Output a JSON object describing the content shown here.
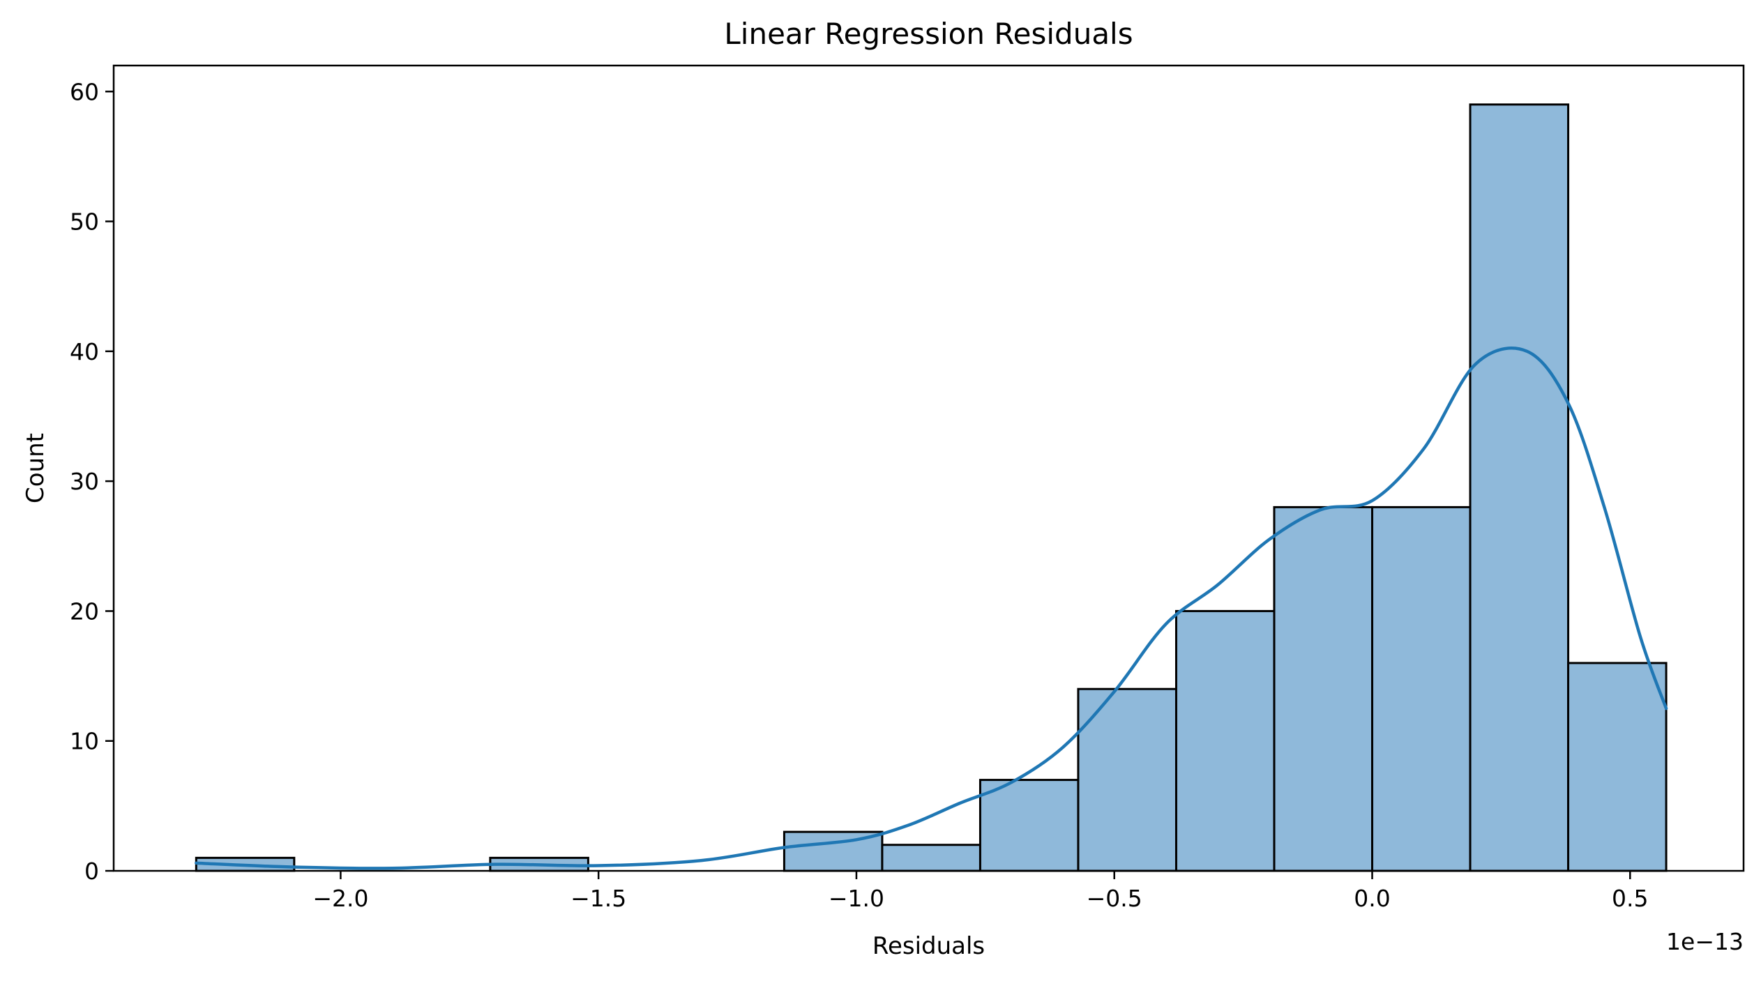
{
  "chart_data": {
    "type": "bar",
    "subtype": "histogram-with-kde",
    "title": "Linear Regression Residuals",
    "xlabel": "Residuals",
    "ylabel": "Count",
    "x_offset_label": "1e−13",
    "x_scale_note": "x values are in units of 1e-13",
    "xlim": [
      -2.44,
      0.72
    ],
    "ylim": [
      0,
      62
    ],
    "grid": false,
    "legend": false,
    "colors": {
      "bar_fill": "#8fb9da",
      "bar_edge": "#000000",
      "kde_line": "#1f77b4"
    },
    "bins": {
      "start": -2.28,
      "width": 0.19
    },
    "values": [
      1,
      0,
      0,
      1,
      0,
      0,
      3,
      2,
      7,
      14,
      20,
      28,
      28,
      59,
      16
    ],
    "x_ticks": [
      -2.0,
      -1.5,
      -1.0,
      -0.5,
      0.0,
      0.5
    ],
    "x_tick_labels": [
      "−2.0",
      "−1.5",
      "−1.0",
      "−0.5",
      "0.0",
      "0.5"
    ],
    "y_ticks": [
      0,
      10,
      20,
      30,
      40,
      50,
      60
    ],
    "y_tick_labels": [
      "0",
      "10",
      "20",
      "30",
      "40",
      "50",
      "60"
    ],
    "kde": {
      "x": [
        -2.28,
        -2.1,
        -1.9,
        -1.7,
        -1.5,
        -1.3,
        -1.14,
        -1.0,
        -0.9,
        -0.8,
        -0.7,
        -0.6,
        -0.5,
        -0.4,
        -0.3,
        -0.2,
        -0.1,
        0.0,
        0.1,
        0.2,
        0.3,
        0.38,
        0.45,
        0.52,
        0.57
      ],
      "y": [
        0.6,
        0.3,
        0.2,
        0.5,
        0.4,
        0.8,
        1.8,
        2.4,
        3.5,
        5.2,
        6.8,
        9.5,
        13.8,
        19.0,
        22.0,
        25.5,
        27.8,
        28.5,
        32.5,
        39.0,
        40.0,
        36.0,
        28.0,
        18.0,
        12.5
      ]
    }
  }
}
